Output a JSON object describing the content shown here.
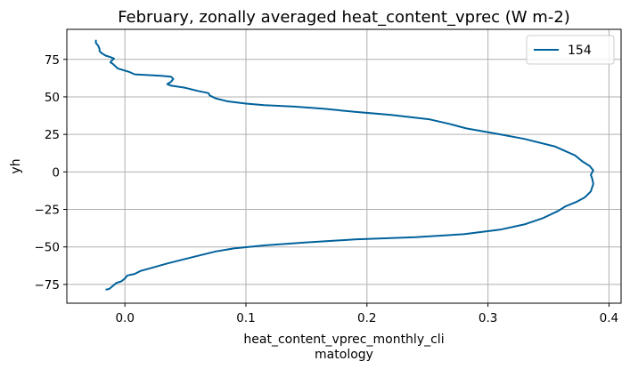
{
  "chart_data": {
    "type": "line",
    "title": "February, zonally averaged heat_content_vprec (W m-2)",
    "xlabel_lines": [
      "heat_content_vprec_monthly_cli",
      "matology"
    ],
    "ylabel": "yh",
    "xlim": [
      -0.048,
      0.41
    ],
    "ylim": [
      -87.5,
      95
    ],
    "xticks": [
      0.0,
      0.1,
      0.2,
      0.3,
      0.4
    ],
    "xtick_labels": [
      "0.0",
      "0.1",
      "0.2",
      "0.3",
      "0.4"
    ],
    "yticks": [
      -75,
      -50,
      -25,
      0,
      25,
      50,
      75
    ],
    "ytick_labels": [
      "−75",
      "−50",
      "−25",
      "0",
      "25",
      "50",
      "75"
    ],
    "grid": true,
    "legend_position": "upper right",
    "series": [
      {
        "name": "154",
        "color": "#00629b",
        "points": [
          [
            -0.016,
            -78.5
          ],
          [
            -0.013,
            -78
          ],
          [
            -0.01,
            -76
          ],
          [
            -0.007,
            -74
          ],
          [
            -0.003,
            -73
          ],
          [
            0.0,
            -71
          ],
          [
            0.002,
            -69
          ],
          [
            0.008,
            -68
          ],
          [
            0.013,
            -66
          ],
          [
            0.022,
            -64
          ],
          [
            0.035,
            -61
          ],
          [
            0.05,
            -58
          ],
          [
            0.06,
            -56
          ],
          [
            0.075,
            -53
          ],
          [
            0.09,
            -51
          ],
          [
            0.115,
            -49
          ],
          [
            0.15,
            -47
          ],
          [
            0.19,
            -45
          ],
          [
            0.24,
            -43.5
          ],
          [
            0.28,
            -41.5
          ],
          [
            0.31,
            -38.5
          ],
          [
            0.33,
            -35
          ],
          [
            0.345,
            -31
          ],
          [
            0.358,
            -26
          ],
          [
            0.364,
            -23
          ],
          [
            0.373,
            -20
          ],
          [
            0.38,
            -17
          ],
          [
            0.385,
            -13
          ],
          [
            0.387,
            -8
          ],
          [
            0.386,
            -4
          ],
          [
            0.385,
            -2
          ],
          [
            0.387,
            1
          ],
          [
            0.384,
            4
          ],
          [
            0.378,
            7
          ],
          [
            0.372,
            11
          ],
          [
            0.355,
            17
          ],
          [
            0.33,
            22
          ],
          [
            0.31,
            25
          ],
          [
            0.282,
            29
          ],
          [
            0.268,
            32
          ],
          [
            0.252,
            35
          ],
          [
            0.22,
            38
          ],
          [
            0.19,
            40
          ],
          [
            0.165,
            42
          ],
          [
            0.14,
            43.5
          ],
          [
            0.115,
            44.5
          ],
          [
            0.1,
            45.5
          ],
          [
            0.085,
            47
          ],
          [
            0.075,
            49
          ],
          [
            0.07,
            51
          ],
          [
            0.069,
            52.5
          ],
          [
            0.06,
            54
          ],
          [
            0.05,
            56
          ],
          [
            0.038,
            57.5
          ],
          [
            0.035,
            58.5
          ],
          [
            0.038,
            60
          ],
          [
            0.04,
            62
          ],
          [
            0.038,
            63.5
          ],
          [
            0.03,
            64
          ],
          [
            0.02,
            64.5
          ],
          [
            0.008,
            65
          ],
          [
            0.004,
            66.5
          ],
          [
            0.0,
            67.5
          ],
          [
            -0.006,
            69
          ],
          [
            -0.008,
            70.5
          ],
          [
            -0.01,
            72
          ],
          [
            -0.012,
            73
          ],
          [
            -0.011,
            74
          ],
          [
            -0.009,
            75.5
          ],
          [
            -0.012,
            76.5
          ],
          [
            -0.016,
            77.5
          ],
          [
            -0.019,
            79
          ],
          [
            -0.021,
            80.5
          ],
          [
            -0.021,
            82
          ],
          [
            -0.022,
            84
          ],
          [
            -0.024,
            86
          ],
          [
            -0.024,
            88
          ]
        ]
      }
    ]
  }
}
